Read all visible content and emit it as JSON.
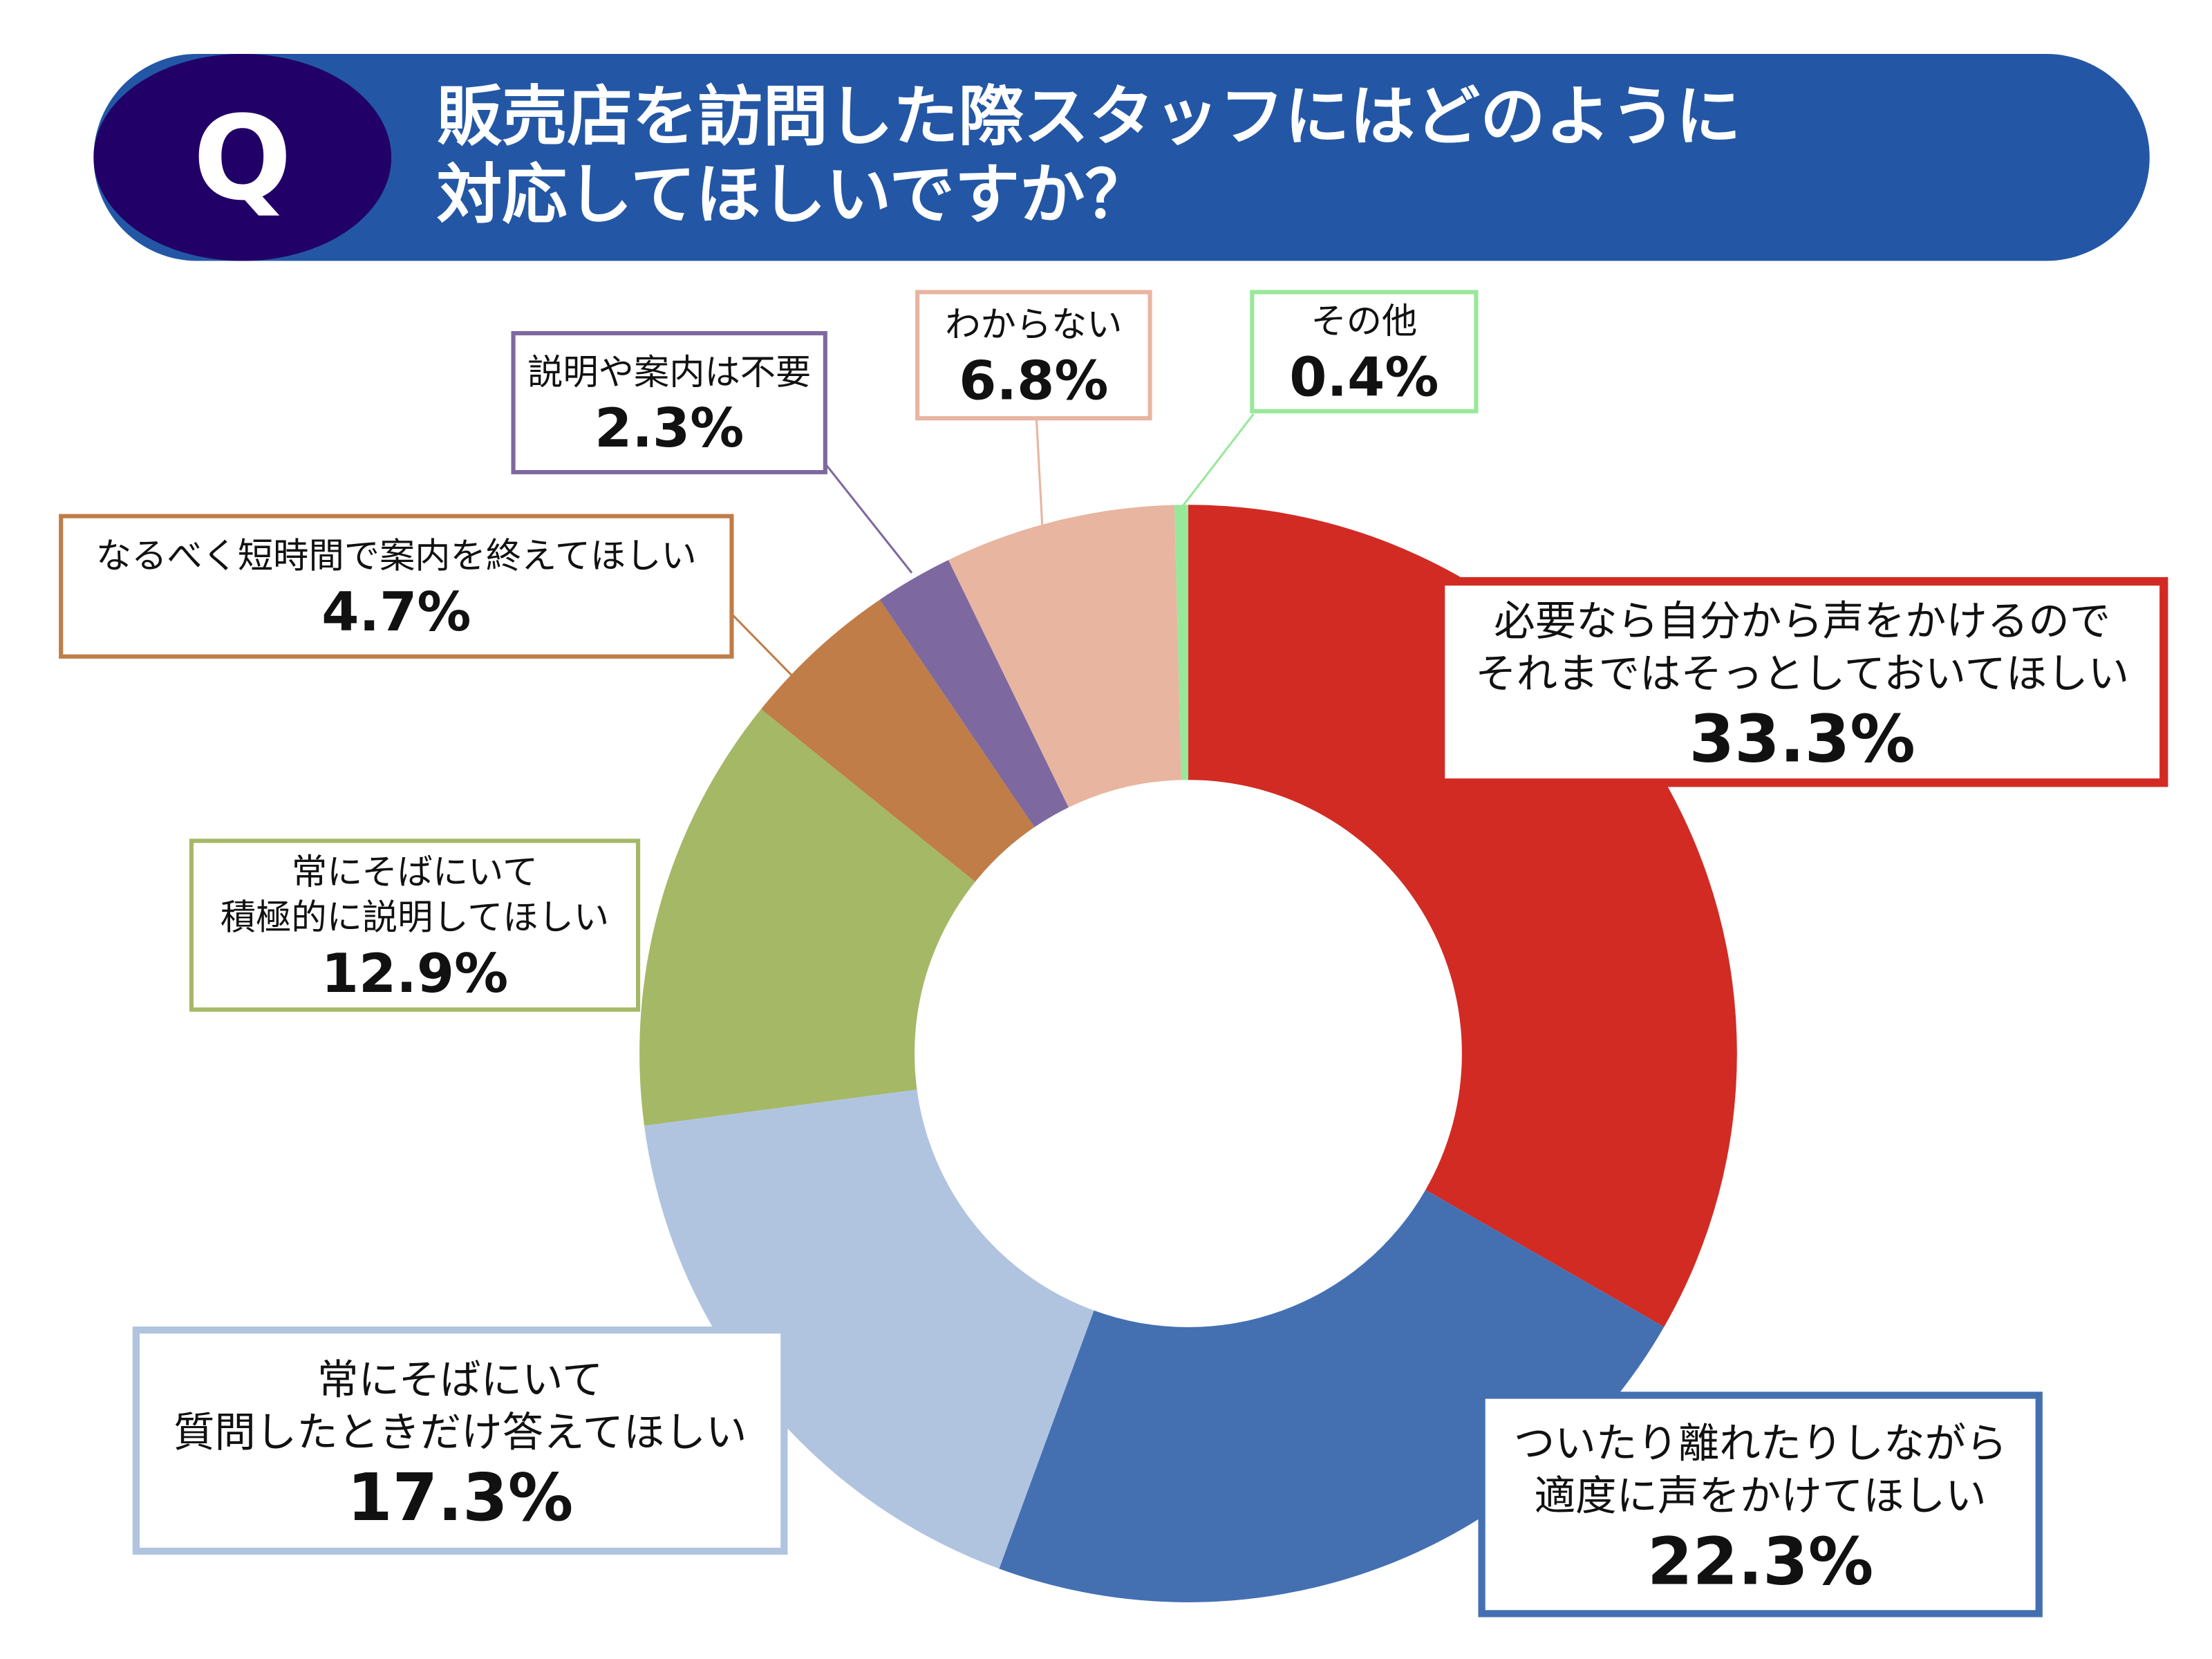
{
  "header": {
    "q_mark": "Q",
    "title_line1": "販売店を訪問した際スタッフにはどのように",
    "title_line2": "対応してほしいですか？",
    "bar_color": "#2357A5",
    "q_color": "#210068"
  },
  "chart_data": {
    "type": "pie",
    "variant": "donut",
    "start": "top",
    "direction": "clockwise",
    "title": "販売店を訪問した際スタッフにはどのように対応してほしいですか？",
    "slices": [
      {
        "label_lines": [
          "必要なら自分から声をかけるので",
          "それまではそっとしておいてほしい"
        ],
        "value": 33.3,
        "display": "33.3%",
        "color": "#D22B24"
      },
      {
        "label_lines": [
          "ついたり離れたりしながら",
          "適度に声をかけてほしい"
        ],
        "value": 22.3,
        "display": "22.3%",
        "color": "#4470B2"
      },
      {
        "label_lines": [
          "常にそばにいて",
          "質問したときだけ答えてほしい"
        ],
        "value": 17.3,
        "display": "17.3%",
        "color": "#B0C4E0"
      },
      {
        "label_lines": [
          "常にそばにいて",
          "積極的に説明してほしい"
        ],
        "value": 12.9,
        "display": "12.9%",
        "color": "#A5B866"
      },
      {
        "label_lines": [
          "なるべく短時間で案内を終えてほしい"
        ],
        "value": 4.7,
        "display": "4.7%",
        "color": "#C07D48"
      },
      {
        "label_lines": [
          "説明や案内は不要"
        ],
        "value": 2.3,
        "display": "2.3%",
        "color": "#7D699F"
      },
      {
        "label_lines": [
          "わからない"
        ],
        "value": 6.8,
        "display": "6.8%",
        "color": "#E8B5A0"
      },
      {
        "label_lines": [
          "その他"
        ],
        "value": 0.4,
        "display": "0.4%",
        "color": "#98E89A"
      }
    ]
  }
}
